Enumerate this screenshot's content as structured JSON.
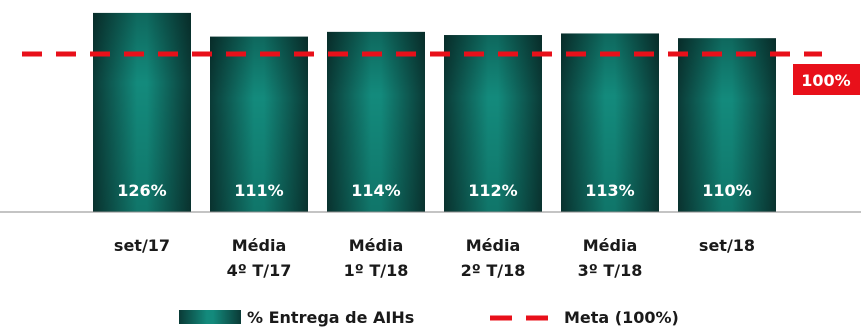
{
  "chart_data": {
    "type": "bar",
    "categories": [
      [
        "set/17"
      ],
      [
        "Média",
        "4º T/17"
      ],
      [
        "Média",
        "1º T/18"
      ],
      [
        "Média",
        "2º T/18"
      ],
      [
        "Média",
        "3º T/18"
      ],
      [
        "set/18"
      ]
    ],
    "series": [
      {
        "name": "% Entrega de AIHs",
        "values": [
          126,
          111,
          114,
          112,
          113,
          110
        ],
        "labels": [
          "126%",
          "111%",
          "114%",
          "112%",
          "113%",
          "110%"
        ],
        "color": "#0f6e63"
      }
    ],
    "target": {
      "name": "Meta (100%)",
      "value": 100,
      "label": "100%",
      "color": "#e8101a"
    },
    "ylim": [
      0,
      100
    ],
    "grid": false,
    "legend_position": "bottom"
  }
}
